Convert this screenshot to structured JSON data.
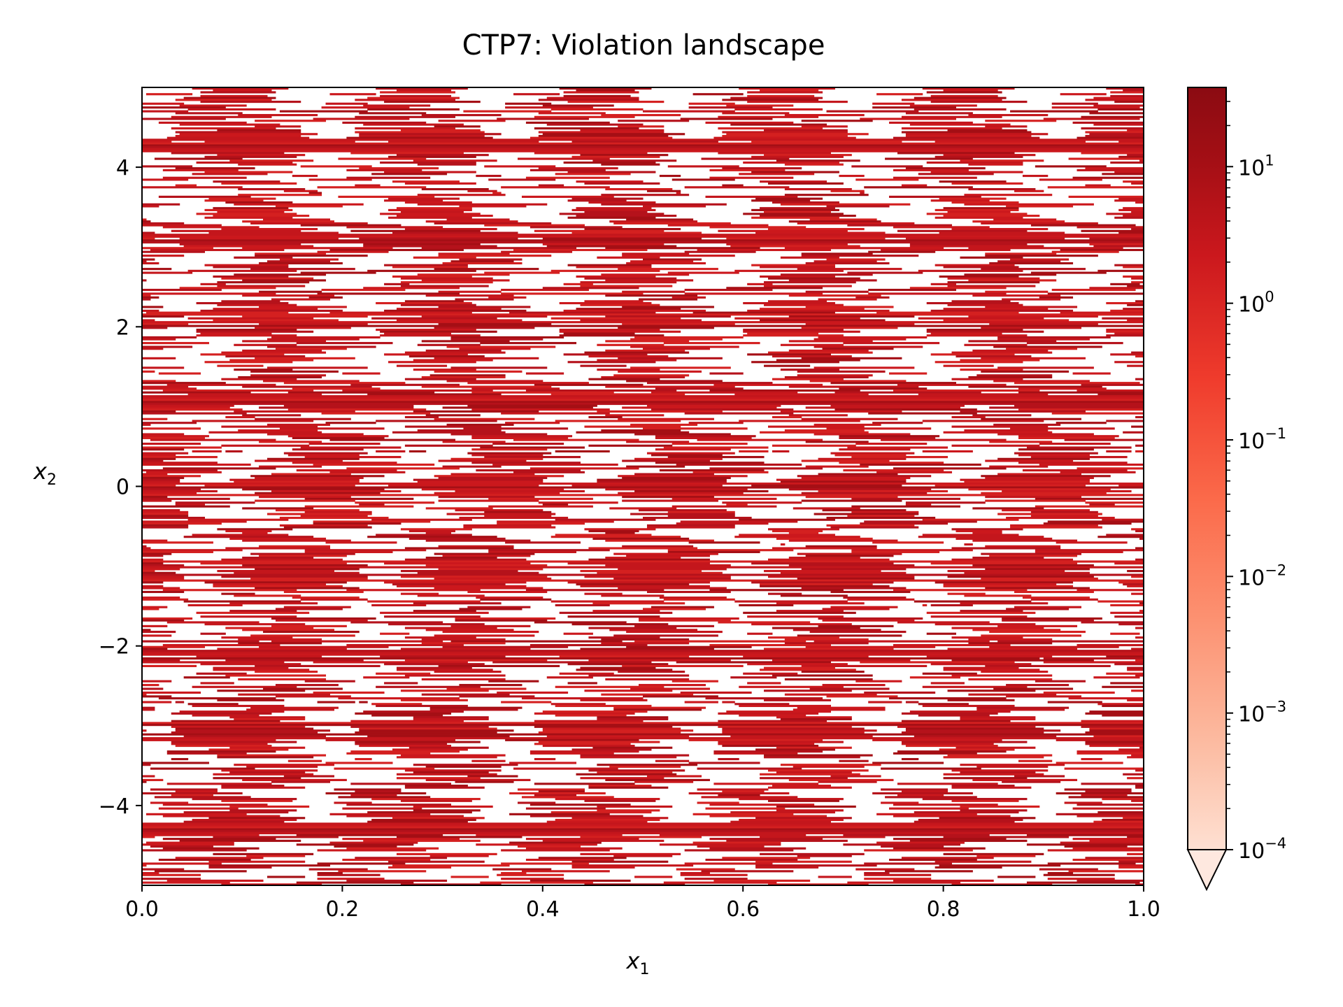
{
  "chart_data": {
    "type": "heatmap",
    "title": "CTP7: Violation landscape",
    "xlabel_base": "x",
    "xlabel_sub": "1",
    "ylabel_base": "x",
    "ylabel_sub": "2",
    "xlim": [
      0.0,
      1.0
    ],
    "ylim": [
      -5.0,
      5.0
    ],
    "xticks": [
      {
        "value": 0.0,
        "label": "0.0"
      },
      {
        "value": 0.2,
        "label": "0.2"
      },
      {
        "value": 0.4,
        "label": "0.4"
      },
      {
        "value": 0.6,
        "label": "0.6"
      },
      {
        "value": 0.8,
        "label": "0.8"
      },
      {
        "value": 1.0,
        "label": "1.0"
      }
    ],
    "yticks": [
      {
        "value": -4,
        "label": "−4"
      },
      {
        "value": -2,
        "label": "−2"
      },
      {
        "value": 0,
        "label": "0"
      },
      {
        "value": 2,
        "label": "2"
      },
      {
        "value": 4,
        "label": "4"
      }
    ],
    "colorbar": {
      "scale": "log",
      "colormap": "Reds",
      "extend": "min",
      "range_log10": [
        -4.0,
        1.58
      ],
      "ticks": [
        {
          "exp": 1,
          "base": "10",
          "sup": "1"
        },
        {
          "exp": 0,
          "base": "10",
          "sup": "0"
        },
        {
          "exp": -1,
          "base": "10",
          "sup": "−1"
        },
        {
          "exp": -2,
          "base": "10",
          "sup": "−2"
        },
        {
          "exp": -3,
          "base": "10",
          "sup": "−3"
        },
        {
          "exp": -4,
          "base": "10",
          "sup": "−4"
        }
      ],
      "colors": [
        "#fee0d2",
        "#fcbba1",
        "#fc9272",
        "#fb6a4a",
        "#ef3b2c",
        "#cb181d",
        "#a50f15",
        "#8b0b12"
      ]
    },
    "pattern": {
      "periods_x": 5.5,
      "feasible_color": "#ffffff",
      "violation_color": "#b5121b",
      "strong_bands_y": [
        4.3,
        3.1,
        2.1,
        1.1,
        0.0,
        -1.1,
        -2.1,
        -3.1,
        -4.3
      ]
    }
  }
}
